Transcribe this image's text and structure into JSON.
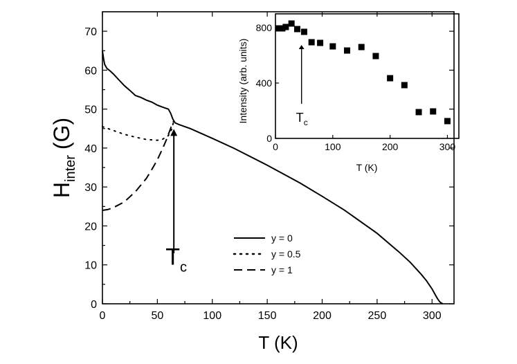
{
  "chart_data": [
    {
      "type": "line",
      "title": "",
      "xlabel": "T (K)",
      "ylabel_main": "H",
      "ylabel_sub": "inter",
      "ylabel_unit": "(G)",
      "xlim": [
        0,
        320
      ],
      "ylim": [
        0,
        75
      ],
      "xticks": [
        0,
        50,
        100,
        150,
        200,
        250,
        300
      ],
      "yticks": [
        0,
        10,
        20,
        30,
        40,
        50,
        60,
        70
      ],
      "annotation": {
        "label_main": "T",
        "label_sub": "c",
        "x": 65
      },
      "legend_position": "lower-center",
      "series": [
        {
          "name": "y = 0",
          "style": "solid",
          "x": [
            0,
            1,
            2,
            4,
            7,
            10,
            15,
            20,
            25,
            30,
            35,
            40,
            45,
            50,
            55,
            60,
            62,
            64,
            65,
            66,
            70,
            80,
            100,
            120,
            150,
            180,
            200,
            220,
            250,
            270,
            280,
            290,
            295,
            300,
            303,
            305,
            307,
            309,
            310
          ],
          "y": [
            65,
            63,
            61.5,
            60.5,
            59.8,
            59,
            57.5,
            56,
            54.8,
            53.5,
            53,
            52.3,
            51.8,
            51,
            50.5,
            50,
            49,
            47.5,
            47,
            46.5,
            46,
            45,
            42.5,
            39.9,
            35.6,
            31.0,
            27.6,
            24.1,
            18.1,
            13.3,
            10.7,
            7.6,
            5.9,
            3.8,
            2.3,
            1.3,
            0.5,
            0.1,
            0
          ]
        },
        {
          "name": "y = 0.5",
          "style": "dotted",
          "x": [
            0,
            10,
            20,
            30,
            40,
            50,
            55,
            60,
            63,
            65
          ],
          "y": [
            45.5,
            44.5,
            43.5,
            42.8,
            42.2,
            42.0,
            42.3,
            43.2,
            44.8,
            47
          ]
        },
        {
          "name": "y = 1",
          "style": "dashed",
          "x": [
            0,
            5,
            10,
            20,
            30,
            40,
            45,
            50,
            55,
            58,
            60,
            62,
            64,
            65
          ],
          "y": [
            24,
            24.2,
            24.7,
            26.2,
            28.8,
            32.2,
            34.5,
            37,
            40,
            42,
            43.5,
            45,
            46.5,
            47
          ]
        }
      ]
    },
    {
      "type": "scatter",
      "title": "",
      "xlabel": "T (K)",
      "ylabel": "Intensity (arb. units)",
      "xlim": [
        0,
        320
      ],
      "ylim": [
        0,
        900
      ],
      "xticks": [
        0,
        100,
        200,
        300
      ],
      "yticks": [
        0,
        400,
        800
      ],
      "annotation": {
        "label_main": "T",
        "label_sub": "c",
        "x": 60
      },
      "points": [
        {
          "x": 5,
          "y": 795
        },
        {
          "x": 12,
          "y": 795
        },
        {
          "x": 18,
          "y": 805
        },
        {
          "x": 28,
          "y": 830
        },
        {
          "x": 38,
          "y": 790
        },
        {
          "x": 50,
          "y": 770
        },
        {
          "x": 63,
          "y": 695
        },
        {
          "x": 78,
          "y": 690
        },
        {
          "x": 100,
          "y": 665
        },
        {
          "x": 125,
          "y": 635
        },
        {
          "x": 150,
          "y": 660
        },
        {
          "x": 175,
          "y": 595
        },
        {
          "x": 200,
          "y": 435
        },
        {
          "x": 225,
          "y": 385
        },
        {
          "x": 250,
          "y": 190
        },
        {
          "x": 275,
          "y": 195
        },
        {
          "x": 300,
          "y": 125
        }
      ]
    }
  ]
}
